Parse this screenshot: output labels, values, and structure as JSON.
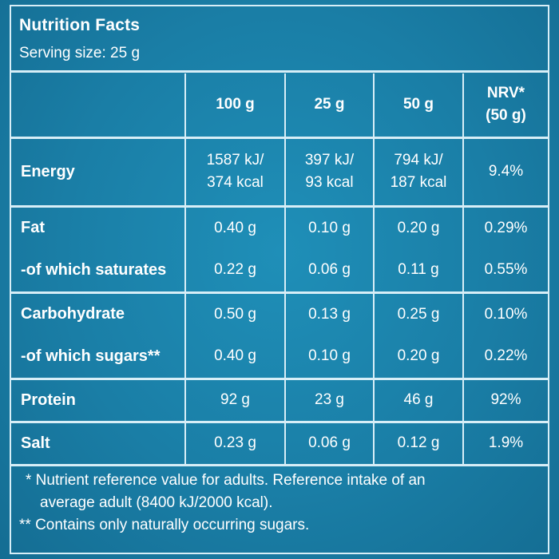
{
  "title": "Nutrition Facts",
  "serving_size": "Serving size: 25 g",
  "table": {
    "columns": [
      "",
      "100 g",
      "25 g",
      "50 g",
      "NRV*",
      "(50 g)"
    ],
    "rows": [
      {
        "name": "Energy",
        "v100": [
          "1587 kJ/",
          "374 kcal"
        ],
        "v25": [
          "397 kJ/",
          "93 kcal"
        ],
        "v50": [
          "794 kJ/",
          "187 kcal"
        ],
        "nrv": "9.4%"
      },
      {
        "name": "Fat",
        "v100": "0.40 g",
        "v25": "0.10 g",
        "v50": "0.20 g",
        "nrv": "0.29%"
      },
      {
        "name": "-of which saturates",
        "v100": "0.22 g",
        "v25": "0.06 g",
        "v50": "0.11 g",
        "nrv": "0.55%"
      },
      {
        "name": "Carbohydrate",
        "v100": "0.50 g",
        "v25": "0.13 g",
        "v50": "0.25 g",
        "nrv": "0.10%"
      },
      {
        "name": "-of which sugars**",
        "v100": "0.40 g",
        "v25": "0.10 g",
        "v50": "0.20 g",
        "nrv": "0.22%"
      },
      {
        "name": "Protein",
        "v100": "92 g",
        "v25": "23 g",
        "v50": "46 g",
        "nrv": "92%"
      },
      {
        "name": "Salt",
        "v100": "0.23 g",
        "v25": "0.06 g",
        "v50": "0.12 g",
        "nrv": "1.9%"
      }
    ]
  },
  "footnotes": {
    "line1": "* Nutrient reference value for adults. Reference intake of an",
    "line2": "average adult (8400 kJ/2000 kcal).",
    "line3": "** Contains only naturally occurring sugars."
  },
  "colors": {
    "background": "#1a7ea6",
    "rule": "#d7eef7",
    "text": "#ffffff"
  }
}
